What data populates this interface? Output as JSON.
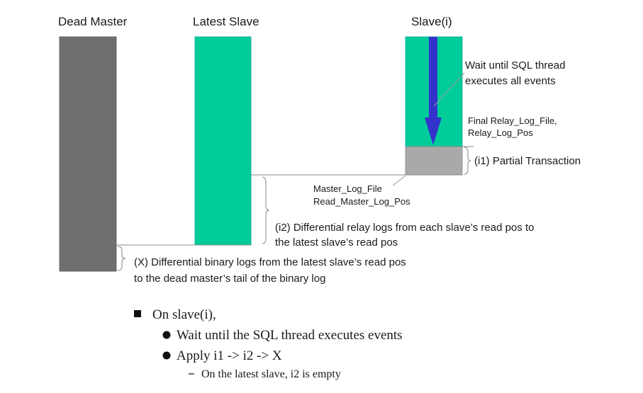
{
  "columns": {
    "dead_master": "Dead Master",
    "latest_slave": "Latest Slave",
    "slave_i": "Slave(i)"
  },
  "annotations": {
    "wait_sql_1": "Wait until SQL thread",
    "wait_sql_2": "executes all events",
    "final_relay_1": "Final Relay_Log_File,",
    "final_relay_2": "Relay_Log_Pos",
    "partial_tx": "(i1) Partial Transaction",
    "master_log_file": "Master_Log_File",
    "read_master_log_pos": "Read_Master_Log_Pos",
    "i2_line1": "(i2) Differential relay logs from each slave’s read pos to",
    "i2_line2": "the latest slave’s read pos",
    "x_line1": "(X) Differential binary logs from the latest slave’s read pos",
    "x_line2": "to the dead master’s tail of the binary log"
  },
  "bullets": {
    "heading": "On slave(i),",
    "item1": "Wait until the SQL thread executes events",
    "item2": "Apply i1 -> i2 -> X",
    "sub1": "On the latest slave, i2 is empty"
  },
  "colors": {
    "dead_master": "#6f6f6f",
    "slave": "#00cc99",
    "partial": "#a9a9a9",
    "arrow": "#3333cc"
  }
}
